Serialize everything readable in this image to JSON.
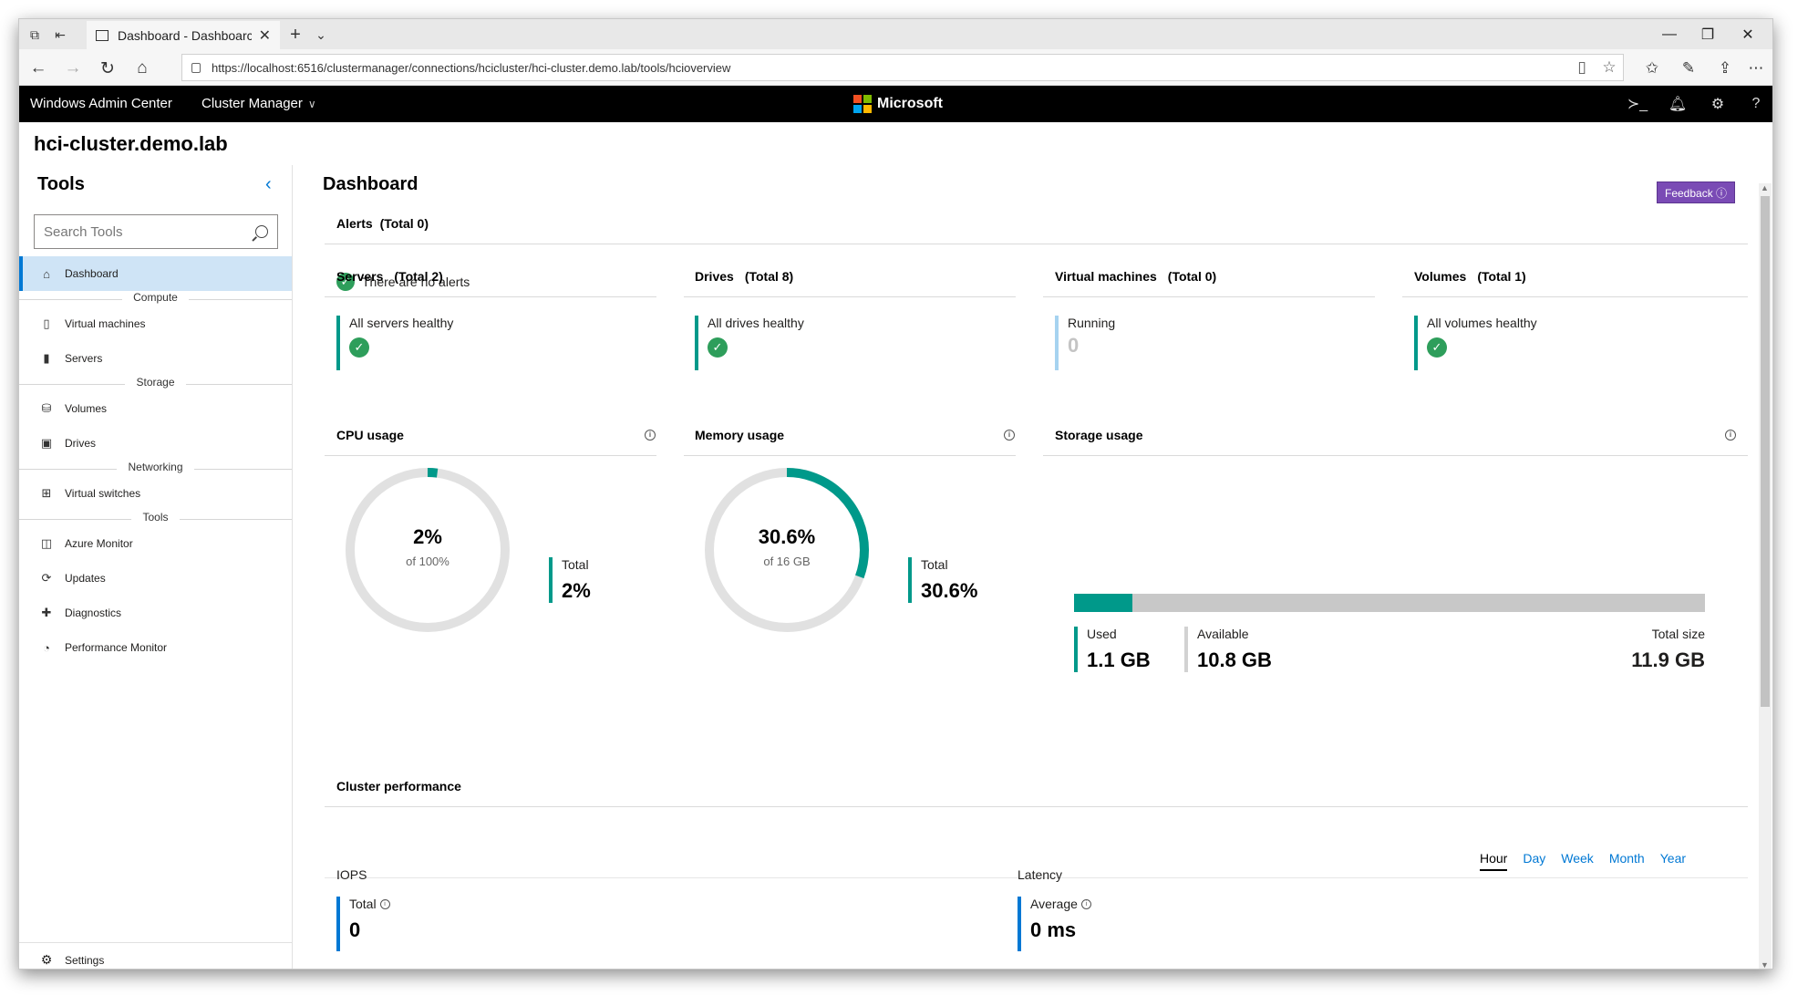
{
  "browser": {
    "tab_title": "Dashboard - Dashboarc",
    "url": "https://localhost:6516/clustermanager/connections/hcicluster/hci-cluster.demo.lab/tools/hcioverview"
  },
  "header": {
    "app_name": "Windows Admin Center",
    "mode": "Cluster Manager",
    "brand": "Microsoft",
    "brand_colors": [
      "#f25022",
      "#7fba00",
      "#00a4ef",
      "#ffb900"
    ]
  },
  "connection_title": "hci-cluster.demo.lab",
  "sidebar": {
    "title": "Tools",
    "search_placeholder": "Search Tools",
    "items": [
      {
        "type": "item",
        "label": "Dashboard",
        "icon": "home-icon",
        "active": true
      },
      {
        "type": "group",
        "label": "Compute"
      },
      {
        "type": "item",
        "label": "Virtual machines",
        "icon": "vm-icon"
      },
      {
        "type": "item",
        "label": "Servers",
        "icon": "server-icon"
      },
      {
        "type": "group",
        "label": "Storage"
      },
      {
        "type": "item",
        "label": "Volumes",
        "icon": "volume-icon"
      },
      {
        "type": "item",
        "label": "Drives",
        "icon": "drive-icon"
      },
      {
        "type": "group",
        "label": "Networking"
      },
      {
        "type": "item",
        "label": "Virtual switches",
        "icon": "switch-icon"
      },
      {
        "type": "group",
        "label": "Tools"
      },
      {
        "type": "item",
        "label": "Azure Monitor",
        "icon": "monitor-icon"
      },
      {
        "type": "item",
        "label": "Updates",
        "icon": "updates-icon"
      },
      {
        "type": "item",
        "label": "Diagnostics",
        "icon": "diagnostics-icon"
      },
      {
        "type": "item",
        "label": "Performance Monitor",
        "icon": "performance-icon"
      }
    ],
    "settings_label": "Settings"
  },
  "main": {
    "title": "Dashboard",
    "feedback_label": "Feedback ⓘ",
    "alerts": {
      "title": "Alerts",
      "total": "(Total 0)",
      "message": "There are no alerts"
    },
    "servers": {
      "title": "Servers",
      "total": "(Total 2)",
      "status": "All servers healthy"
    },
    "drives": {
      "title": "Drives",
      "total": "(Total 8)",
      "status": "All drives healthy"
    },
    "vms": {
      "title": "Virtual machines",
      "total": "(Total 0)",
      "status": "Running",
      "count": "0"
    },
    "volumes": {
      "title": "Volumes",
      "total": "(Total 1)",
      "status": "All volumes healthy"
    },
    "cpu": {
      "title": "CPU usage",
      "percent_text": "2%",
      "of_text": "of 100%",
      "total_label": "Total",
      "total_value": "2%",
      "fraction": 0.02
    },
    "memory": {
      "title": "Memory usage",
      "percent_text": "30.6%",
      "of_text": "of 16 GB",
      "total_label": "Total",
      "total_value": "30.6%",
      "fraction": 0.306
    },
    "storage": {
      "title": "Storage usage",
      "used_fraction": 0.092,
      "used_label": "Used",
      "used_value": "1.1 GB",
      "available_label": "Available",
      "available_value": "10.8 GB",
      "total_label": "Total size",
      "total_value": "11.9 GB"
    },
    "performance": {
      "title": "Cluster performance",
      "ranges": [
        "Hour",
        "Day",
        "Week",
        "Month",
        "Year"
      ],
      "active_range": "Hour",
      "iops": {
        "title": "IOPS",
        "metric_label": "Total",
        "value": "0"
      },
      "latency": {
        "title": "Latency",
        "metric_label": "Average",
        "value": "0 ms"
      }
    }
  },
  "colors": {
    "accent": "#0078d4",
    "healthy": "#2e9e5b",
    "usage": "#00998a",
    "feedback": "#7a4bb5"
  }
}
